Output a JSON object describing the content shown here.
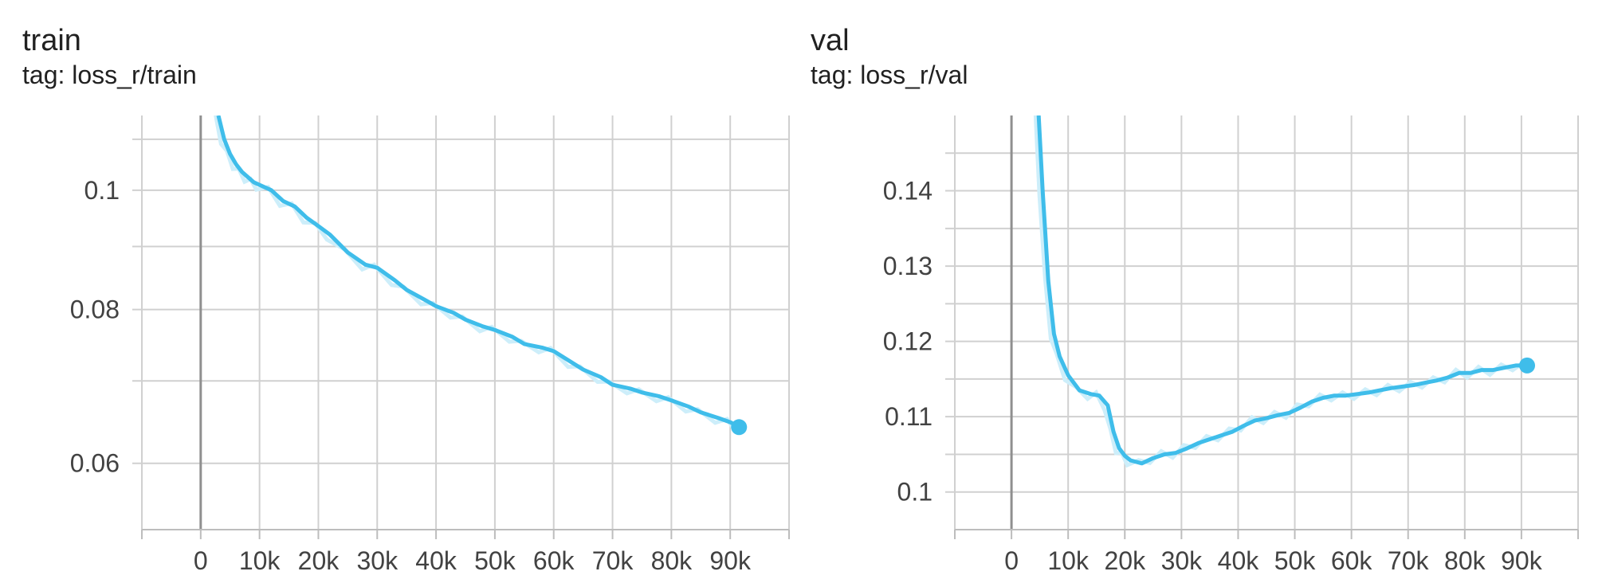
{
  "chart_data": [
    {
      "type": "line",
      "title": "train",
      "subtitle": "tag: loss_r/train",
      "xlabel": "",
      "ylabel": "",
      "xlim": [
        -10000,
        100000
      ],
      "ylim": [
        0.053,
        0.115
      ],
      "y_scale": "log",
      "x_ticks": [
        0,
        10000,
        20000,
        30000,
        40000,
        50000,
        60000,
        70000,
        80000,
        90000
      ],
      "x_tick_labels": [
        "0",
        "10k",
        "20k",
        "30k",
        "40k",
        "50k",
        "60k",
        "70k",
        "80k",
        "90k"
      ],
      "y_ticks": [
        0.06,
        0.08,
        0.1
      ],
      "y_tick_labels": [
        "0.06",
        "0.08",
        "0.1"
      ],
      "grid": true,
      "color": "#3fbdea",
      "raw_color": "#cdeefa",
      "series": [
        {
          "x": [
            3000,
            4000,
            5000,
            6000,
            7000,
            8000,
            9000,
            10000,
            12000,
            14000,
            16000,
            18000,
            20000,
            22000,
            25000,
            28000,
            30000,
            33000,
            35000,
            38000,
            40000,
            43000,
            45000,
            48000,
            50000,
            53000,
            55000,
            58000,
            60000,
            63000,
            65000,
            68000,
            70000,
            73000,
            75000,
            78000,
            80000,
            83000,
            85000,
            88000,
            90000,
            91500
          ],
          "y": [
            0.115,
            0.11,
            0.107,
            0.105,
            0.1035,
            0.1025,
            0.1015,
            0.101,
            0.1,
            0.098,
            0.097,
            0.095,
            0.0935,
            0.092,
            0.089,
            0.087,
            0.0865,
            0.0845,
            0.083,
            0.0815,
            0.0805,
            0.0795,
            0.0785,
            0.0775,
            0.077,
            0.076,
            0.075,
            0.0745,
            0.074,
            0.0725,
            0.0715,
            0.0705,
            0.0695,
            0.069,
            0.0685,
            0.068,
            0.0675,
            0.0667,
            0.066,
            0.0653,
            0.0648,
            0.0642
          ]
        }
      ]
    },
    {
      "type": "line",
      "title": "val",
      "subtitle": "tag: loss_r/val",
      "xlabel": "",
      "ylabel": "",
      "xlim": [
        -10000,
        100000
      ],
      "ylim": [
        0.095,
        0.15
      ],
      "x_ticks": [
        0,
        10000,
        20000,
        30000,
        40000,
        50000,
        60000,
        70000,
        80000,
        90000
      ],
      "x_tick_labels": [
        "0",
        "10k",
        "20k",
        "30k",
        "40k",
        "50k",
        "60k",
        "70k",
        "80k",
        "90k"
      ],
      "y_ticks": [
        0.1,
        0.11,
        0.12,
        0.13,
        0.14
      ],
      "y_tick_labels": [
        "0.1",
        "0.11",
        "0.12",
        "0.13",
        "0.14"
      ],
      "grid": true,
      "color": "#3fbdea",
      "raw_color": "#cdeefa",
      "series": [
        {
          "x": [
            4800,
            5500,
            6500,
            7500,
            8500,
            10000,
            12000,
            14000,
            15500,
            17000,
            18000,
            19000,
            20000,
            21000,
            23000,
            25000,
            27000,
            29000,
            31000,
            33000,
            35000,
            37000,
            39000,
            41000,
            43000,
            45000,
            47000,
            49000,
            51000,
            53000,
            55000,
            57000,
            59000,
            61000,
            63000,
            65000,
            67000,
            69000,
            71000,
            73000,
            75000,
            77000,
            79000,
            81000,
            83000,
            85000,
            87000,
            89000,
            91000
          ],
          "y": [
            0.15,
            0.14,
            0.128,
            0.121,
            0.118,
            0.1155,
            0.1135,
            0.113,
            0.1128,
            0.1115,
            0.108,
            0.1058,
            0.1048,
            0.1042,
            0.1038,
            0.1045,
            0.105,
            0.1052,
            0.1058,
            0.1065,
            0.107,
            0.1075,
            0.108,
            0.1088,
            0.1095,
            0.1098,
            0.1102,
            0.1105,
            0.1112,
            0.112,
            0.1125,
            0.1128,
            0.1128,
            0.113,
            0.1132,
            0.1135,
            0.1138,
            0.114,
            0.1142,
            0.1145,
            0.1148,
            0.1152,
            0.1158,
            0.1158,
            0.1162,
            0.1162,
            0.1165,
            0.1168,
            0.1168
          ]
        }
      ]
    }
  ]
}
